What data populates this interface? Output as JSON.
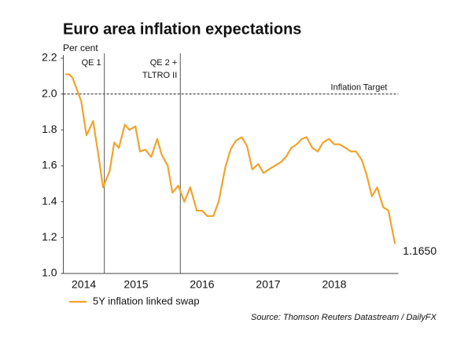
{
  "chart_data": {
    "type": "line",
    "title": "Euro area inflation expectations",
    "y_label": "Per cent",
    "source": "Source: Thomson Reuters Datastream / DailyFX",
    "xlim": [
      2014.4,
      2019.47
    ],
    "xticks": [
      {
        "value": 2014.5,
        "label": "2014"
      },
      {
        "value": 2015.5,
        "label": "2015"
      },
      {
        "value": 2016.5,
        "label": "2016"
      },
      {
        "value": 2017.5,
        "label": "2017"
      },
      {
        "value": 2018.5,
        "label": "2018"
      }
    ],
    "ylim": [
      1.0,
      2.2
    ],
    "yticks": [
      {
        "value": 1,
        "label": "1.0"
      },
      1.2,
      1.4,
      1.6,
      1.8,
      {
        "value": 2,
        "label": "2.0"
      },
      2.2
    ],
    "events": [
      {
        "x": 2015.02,
        "lines": [
          "QE 1"
        ]
      },
      {
        "x": 2016.17,
        "lines": [
          "QE 2 +",
          "TLTRO II"
        ]
      }
    ],
    "reference_line": {
      "value": 2,
      "label": "Inflation Target"
    },
    "x": [
      2014.43,
      2014.49,
      2014.54,
      2014.6,
      2014.67,
      2014.75,
      2014.85,
      2014.93,
      2015.0,
      2015.1,
      2015.17,
      2015.24,
      2015.33,
      2015.4,
      2015.49,
      2015.56,
      2015.64,
      2015.73,
      2015.82,
      2015.89,
      2015.98,
      2016.05,
      2016.14,
      2016.23,
      2016.32,
      2016.42,
      2016.5,
      2016.58,
      2016.67,
      2016.75,
      2016.85,
      2016.93,
      2017.01,
      2017.1,
      2017.18,
      2017.26,
      2017.35,
      2017.43,
      2017.51,
      2017.6,
      2017.69,
      2017.77,
      2017.85,
      2017.93,
      2018.01,
      2018.08,
      2018.17,
      2018.25,
      2018.33,
      2018.42,
      2018.5,
      2018.58,
      2018.67,
      2018.75,
      2018.83,
      2018.92,
      2018.99,
      2019.07,
      2019.15,
      2019.24,
      2019.32,
      2019.42
    ],
    "series": [
      {
        "name": "5Y inflation linked swap",
        "color": "#f2a32c",
        "values": [
          2.11,
          2.11,
          2.09,
          2.03,
          1.96,
          1.77,
          1.85,
          1.66,
          1.48,
          1.57,
          1.73,
          1.7,
          1.83,
          1.8,
          1.82,
          1.68,
          1.69,
          1.65,
          1.75,
          1.66,
          1.6,
          1.45,
          1.49,
          1.4,
          1.48,
          1.35,
          1.35,
          1.32,
          1.32,
          1.4,
          1.59,
          1.69,
          1.74,
          1.76,
          1.71,
          1.58,
          1.61,
          1.56,
          1.58,
          1.6,
          1.62,
          1.65,
          1.7,
          1.72,
          1.75,
          1.76,
          1.7,
          1.68,
          1.73,
          1.75,
          1.72,
          1.72,
          1.7,
          1.68,
          1.68,
          1.63,
          1.55,
          1.43,
          1.48,
          1.37,
          1.35,
          1.165
        ],
        "value_labels": [
          null,
          null,
          null,
          null,
          null,
          null,
          null,
          null,
          null,
          null,
          null,
          null,
          null,
          null,
          null,
          null,
          null,
          null,
          null,
          null,
          null,
          null,
          null,
          null,
          null,
          null,
          null,
          null,
          null,
          null,
          null,
          null,
          null,
          null,
          null,
          null,
          null,
          null,
          null,
          null,
          null,
          null,
          null,
          null,
          null,
          null,
          null,
          null,
          null,
          null,
          null,
          null,
          null,
          null,
          null,
          null,
          null,
          null,
          null,
          null,
          null,
          "1.1650"
        ]
      }
    ]
  }
}
